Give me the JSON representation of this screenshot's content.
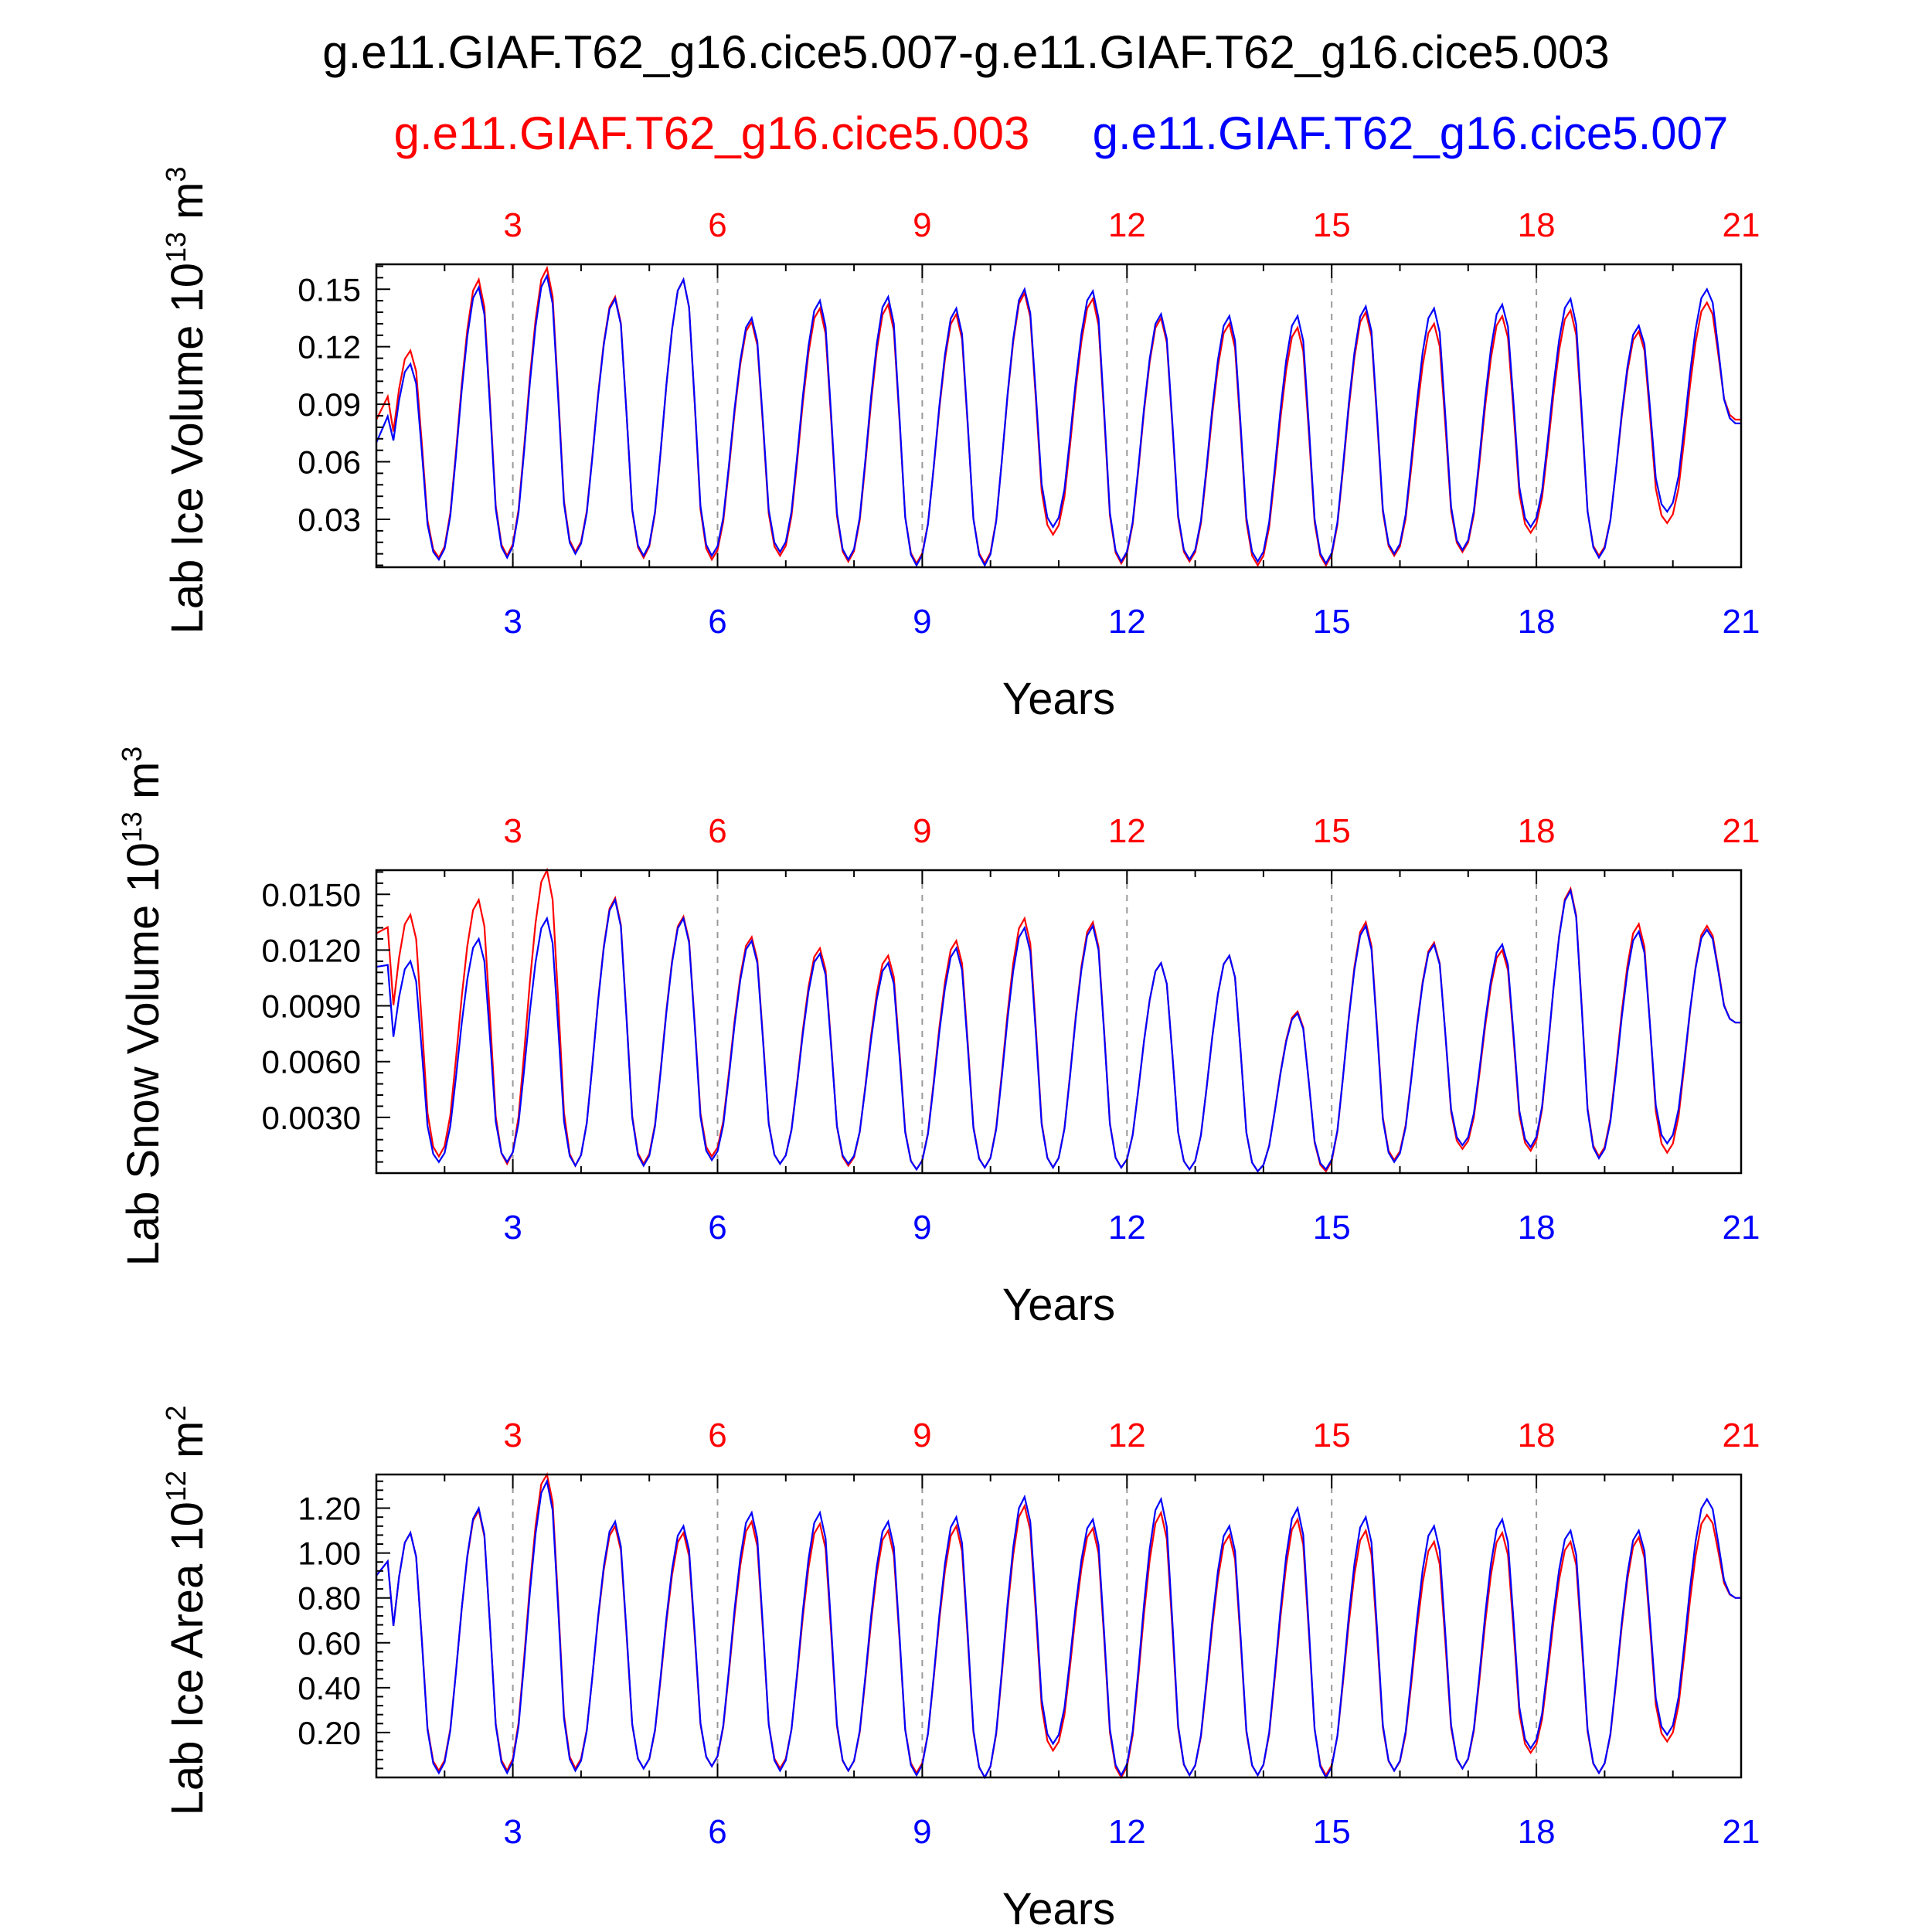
{
  "title": "g.e11.GIAF.T62_g16.cice5.007-g.e11.GIAF.T62_g16.cice5.003",
  "colors": {
    "run_a": "#ff0000",
    "run_b": "#0000ff",
    "axis": "#000000",
    "grid": "#999999"
  },
  "legend": [
    {
      "name": "g.e11.GIAF.T62_g16.cice5.003",
      "color": "#ff0000"
    },
    {
      "name": "g.e11.GIAF.T62_g16.cice5.007",
      "color": "#0000ff"
    }
  ],
  "chart_data": [
    {
      "type": "line",
      "ylabel": "Lab Ice Volume 10",
      "ylabel_exp": "13",
      "ylabel_unit": "m",
      "ylabel_unit_exp": "3",
      "xlabel": "Years",
      "xlim": [
        1,
        21
      ],
      "ylim": [
        0.005,
        0.163
      ],
      "yticks": [
        "0.03",
        "0.06",
        "0.09",
        "0.12",
        "0.15"
      ],
      "xticks": [
        "3",
        "6",
        "9",
        "12",
        "15",
        "18",
        "21"
      ],
      "grid": "dashed vertical at x ticks",
      "series": [
        {
          "name": "g.e11.GIAF.T62_g16.cice5.003",
          "color": "#ff0000",
          "start": 0.082,
          "winter_max": [
            0.118,
            0.155,
            0.161,
            0.146,
            0.155,
            0.133,
            0.14,
            0.142,
            0.137,
            0.148,
            0.145,
            0.135,
            0.132,
            0.13,
            0.138,
            0.132,
            0.136,
            0.139,
            0.128,
            0.143
          ],
          "summer_min": [
            0.007,
            0.01,
            0.011,
            0.013,
            0.01,
            0.009,
            0.011,
            0.008,
            0.007,
            0.007,
            0.022,
            0.007,
            0.008,
            0.006,
            0.006,
            0.011,
            0.013,
            0.023,
            0.011,
            0.028
          ],
          "end": 0.082
        },
        {
          "name": "g.e11.GIAF.T62_g16.cice5.007",
          "color": "#0000ff",
          "start": 0.07,
          "winter_max": [
            0.111,
            0.151,
            0.157,
            0.145,
            0.155,
            0.135,
            0.144,
            0.146,
            0.14,
            0.15,
            0.149,
            0.137,
            0.136,
            0.136,
            0.141,
            0.14,
            0.142,
            0.145,
            0.131,
            0.15
          ],
          "summer_min": [
            0.006,
            0.009,
            0.01,
            0.012,
            0.011,
            0.011,
            0.013,
            0.009,
            0.006,
            0.006,
            0.026,
            0.008,
            0.009,
            0.008,
            0.007,
            0.012,
            0.014,
            0.026,
            0.01,
            0.034
          ],
          "end": 0.08
        }
      ]
    },
    {
      "type": "line",
      "ylabel": "Lab Snow Volume 10",
      "ylabel_exp": "13",
      "ylabel_unit": "m",
      "ylabel_unit_exp": "3",
      "xlabel": "Years",
      "xlim": [
        1,
        21
      ],
      "ylim": [
        0.0,
        0.0163
      ],
      "yticks": [
        "0.0030",
        "0.0060",
        "0.0090",
        "0.0120",
        "0.0150"
      ],
      "xticks": [
        "3",
        "6",
        "9",
        "12",
        "15",
        "18",
        "21"
      ],
      "grid": "dashed vertical at x ticks",
      "series": [
        {
          "name": "g.e11.GIAF.T62_g16.cice5.003",
          "color": "#ff0000",
          "start": 0.0129,
          "winter_max": [
            0.0139,
            0.0147,
            0.0163,
            0.0148,
            0.0138,
            0.0127,
            0.0121,
            0.0117,
            0.0125,
            0.0137,
            0.0135,
            0.0113,
            0.0117,
            0.0087,
            0.0135,
            0.0124,
            0.012,
            0.0153,
            0.0134,
            0.0133
          ],
          "summer_min": [
            0.0011,
            0.0009,
            0.0005,
            0.0004,
            0.0005,
            0.0009,
            0.0005,
            0.0004,
            0.0002,
            0.0003,
            0.0003,
            0.0003,
            0.0002,
            0.0001,
            0.0001,
            0.0007,
            0.0013,
            0.0012,
            0.0009,
            0.0011
          ],
          "end": 0.0081
        },
        {
          "name": "g.e11.GIAF.T62_g16.cice5.007",
          "color": "#0000ff",
          "start": 0.0111,
          "winter_max": [
            0.0114,
            0.0126,
            0.0137,
            0.0147,
            0.0137,
            0.0125,
            0.0118,
            0.0113,
            0.0121,
            0.0132,
            0.0133,
            0.0113,
            0.0117,
            0.0086,
            0.0133,
            0.0123,
            0.0123,
            0.0152,
            0.013,
            0.0131
          ],
          "summer_min": [
            0.0007,
            0.0006,
            0.0006,
            0.0004,
            0.0004,
            0.0007,
            0.0005,
            0.0005,
            0.0002,
            0.0003,
            0.0003,
            0.0003,
            0.0002,
            0.0001,
            0.0002,
            0.0006,
            0.0015,
            0.0014,
            0.0008,
            0.0016
          ],
          "end": 0.0081
        }
      ]
    },
    {
      "type": "line",
      "ylabel": "Lab Ice Area 10",
      "ylabel_exp": "12",
      "ylabel_unit": "m",
      "ylabel_unit_exp": "2",
      "xlabel": "Years",
      "xlim": [
        1,
        21
      ],
      "ylim": [
        0.0,
        1.35
      ],
      "yticks": [
        "0.20",
        "0.40",
        "0.60",
        "0.80",
        "1.00",
        "1.20"
      ],
      "xticks": [
        "3",
        "6",
        "9",
        "12",
        "15",
        "18",
        "21"
      ],
      "grid": "dashed vertical at x ticks",
      "series": [
        {
          "name": "g.e11.GIAF.T62_g16.cice5.003",
          "color": "#ff0000",
          "start": 0.9,
          "winter_max": [
            1.09,
            1.19,
            1.36,
            1.12,
            1.09,
            1.14,
            1.13,
            1.1,
            1.12,
            1.21,
            1.11,
            1.18,
            1.08,
            1.15,
            1.1,
            1.05,
            1.09,
            1.05,
            1.07,
            1.17
          ],
          "summer_min": [
            0.0,
            0.03,
            0.03,
            0.04,
            0.04,
            0.05,
            0.04,
            0.03,
            0.02,
            0.0,
            0.12,
            0.0,
            0.01,
            0.01,
            0.01,
            0.03,
            0.04,
            0.11,
            0.02,
            0.16
          ],
          "end": 0.8
        },
        {
          "name": "g.e11.GIAF.T62_g16.cice5.007",
          "color": "#0000ff",
          "start": 0.9,
          "winter_max": [
            1.09,
            1.2,
            1.32,
            1.14,
            1.12,
            1.18,
            1.18,
            1.14,
            1.16,
            1.25,
            1.15,
            1.24,
            1.12,
            1.2,
            1.16,
            1.12,
            1.15,
            1.1,
            1.1,
            1.24
          ],
          "summer_min": [
            0.0,
            0.02,
            0.02,
            0.03,
            0.04,
            0.05,
            0.03,
            0.03,
            0.01,
            0.0,
            0.15,
            0.01,
            0.01,
            0.01,
            0.0,
            0.03,
            0.04,
            0.13,
            0.02,
            0.19
          ],
          "end": 0.8
        }
      ]
    }
  ]
}
